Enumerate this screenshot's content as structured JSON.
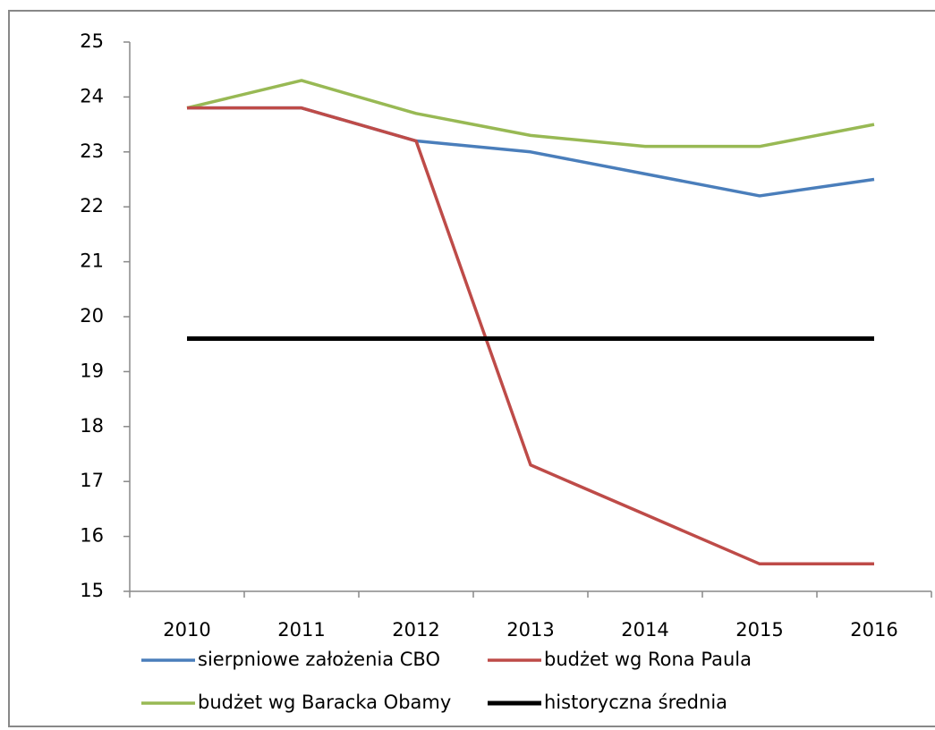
{
  "chart_data": {
    "type": "line",
    "categories": [
      "2010",
      "2011",
      "2012",
      "2013",
      "2014",
      "2015",
      "2016"
    ],
    "series": [
      {
        "name": "sierpniowe założenia CBO",
        "color": "#4a7ebb",
        "values": [
          23.8,
          23.8,
          23.2,
          23.0,
          22.6,
          22.2,
          22.5
        ]
      },
      {
        "name": "budżet wg Rona Paula",
        "color": "#be4b48",
        "values": [
          23.8,
          23.8,
          23.2,
          17.3,
          16.4,
          15.5,
          15.5
        ]
      },
      {
        "name": "budżet wg Baracka Obamy",
        "color": "#98b954",
        "values": [
          23.8,
          24.3,
          23.7,
          23.3,
          23.1,
          23.1,
          23.5
        ]
      },
      {
        "name": "historyczna średnia",
        "color": "#000000",
        "values": [
          19.6,
          19.6,
          19.6,
          19.6,
          19.6,
          19.6,
          19.6
        ]
      }
    ],
    "ylim": [
      15,
      25
    ],
    "yticks": [
      15,
      16,
      17,
      18,
      19,
      20,
      21,
      22,
      23,
      24,
      25
    ],
    "grid": false,
    "legend": "bottom"
  }
}
